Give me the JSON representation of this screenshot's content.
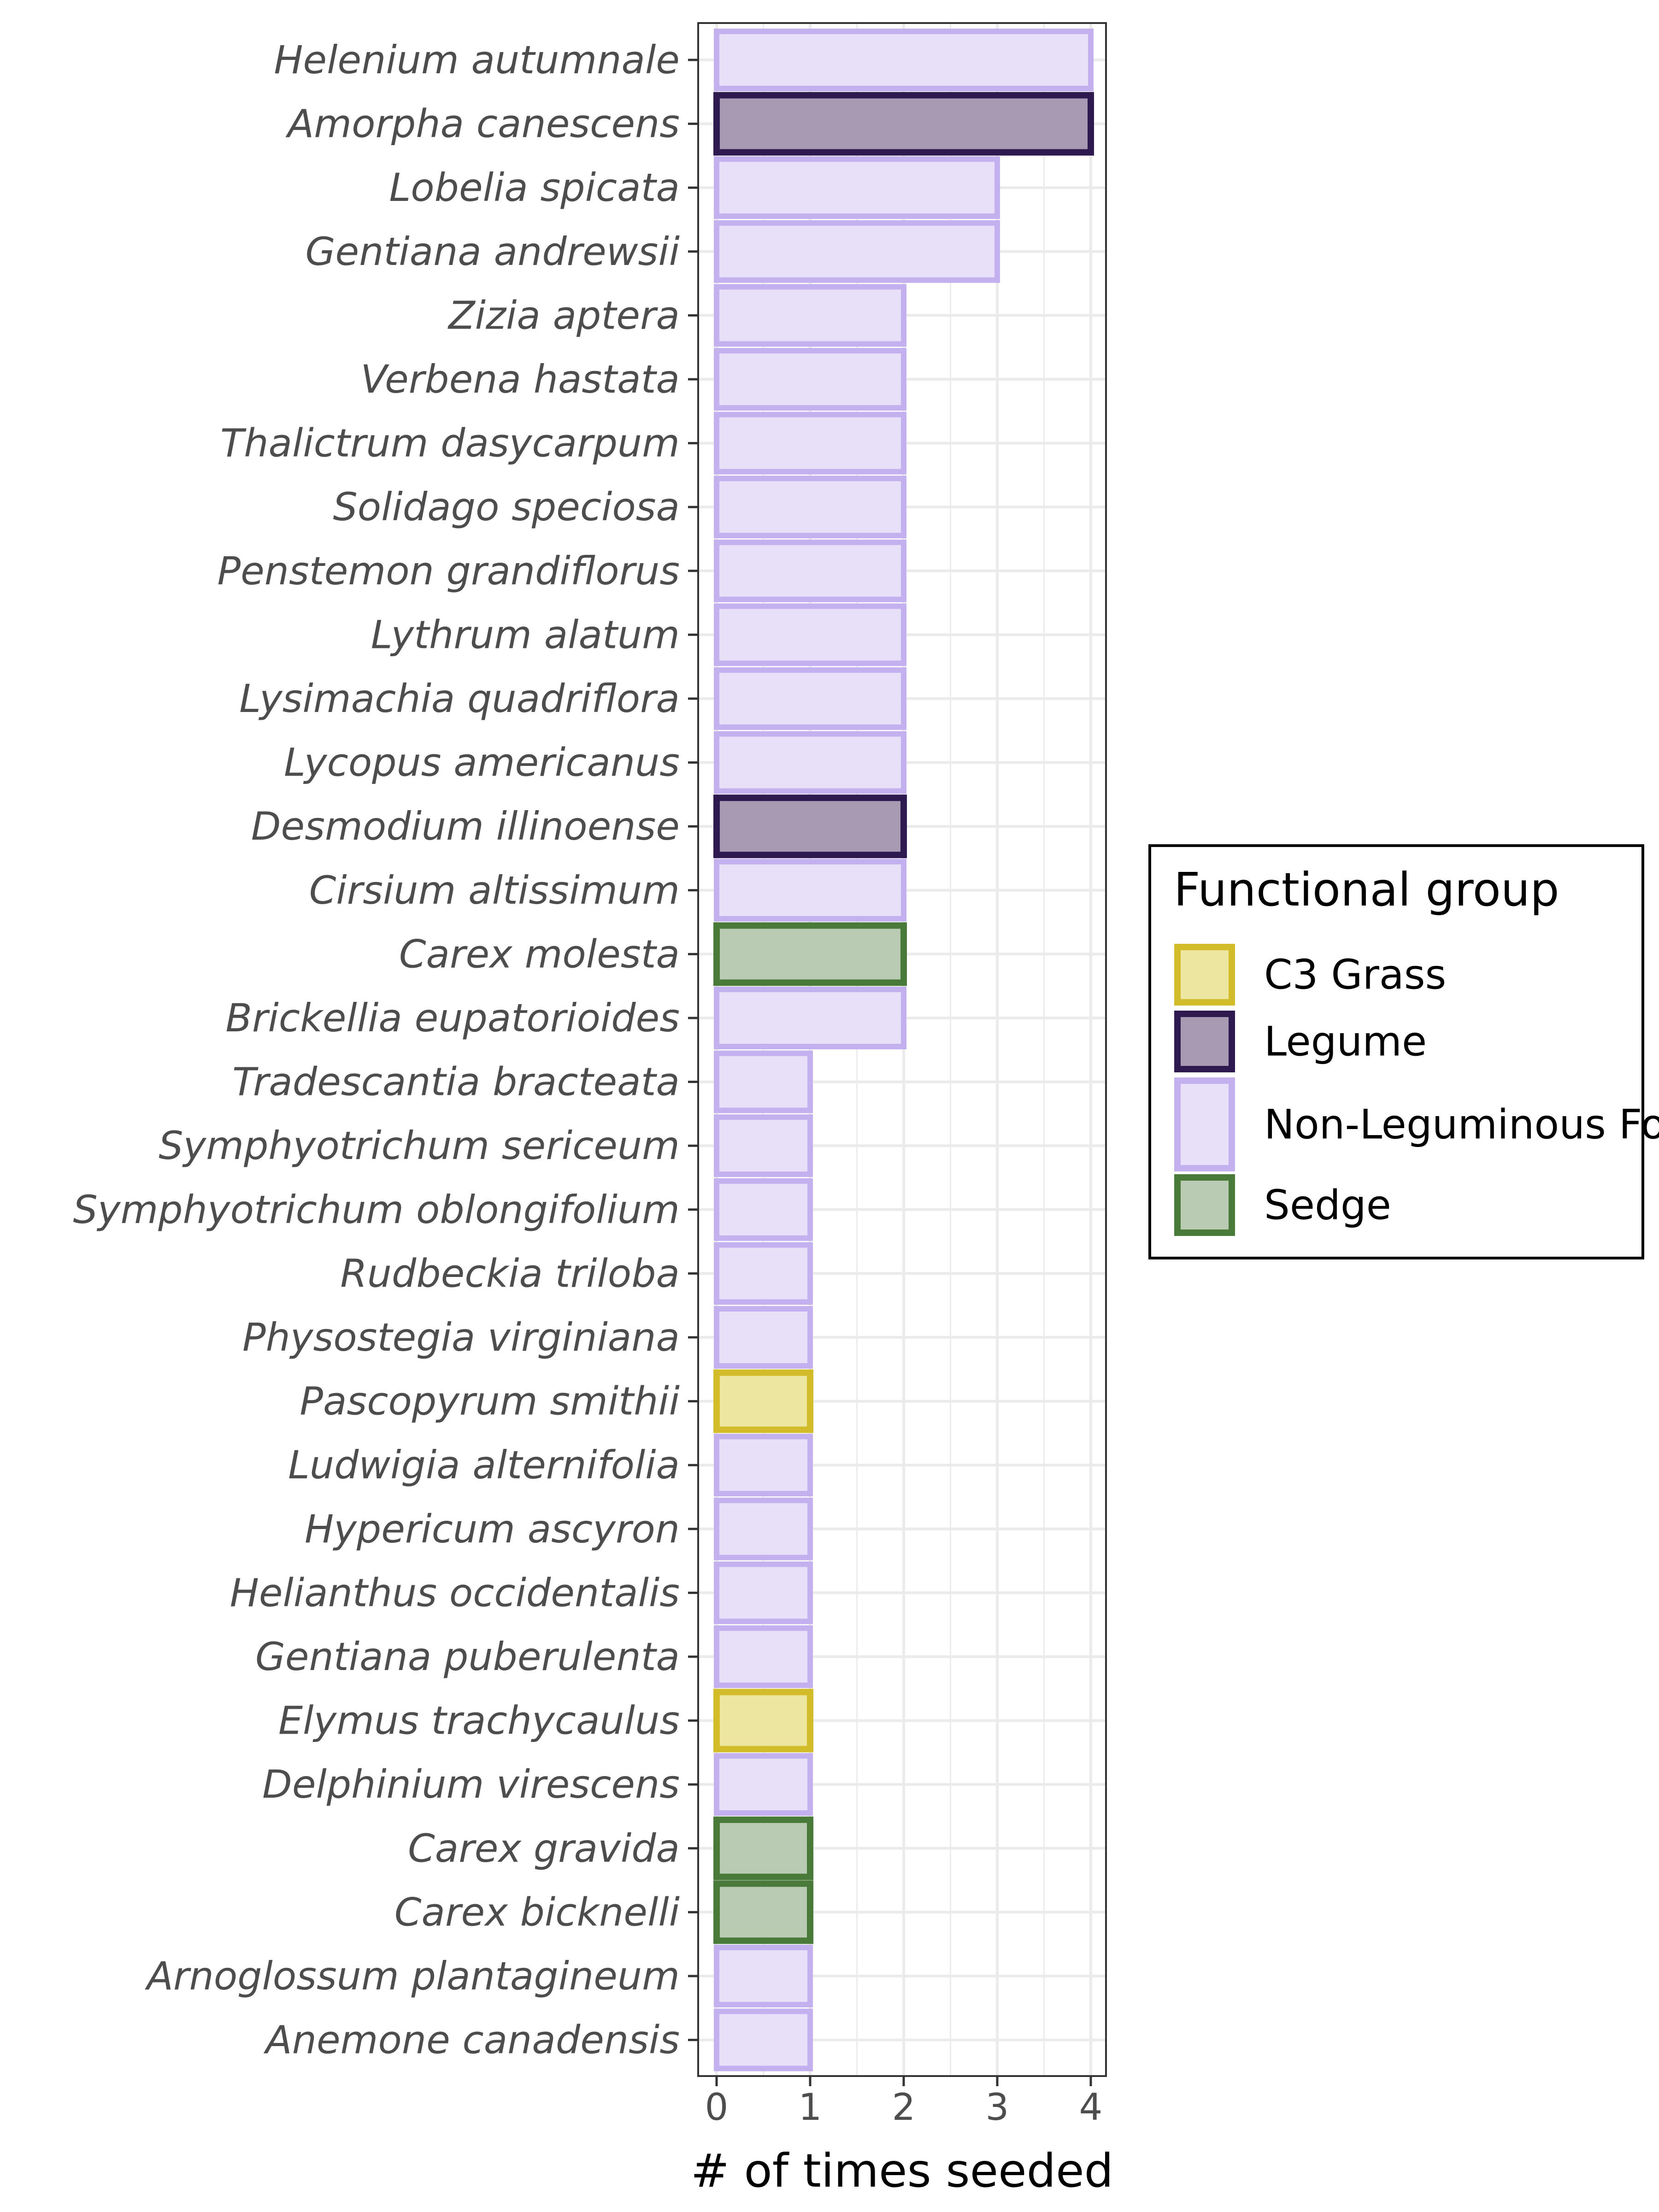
{
  "chart_data": {
    "type": "bar",
    "orientation": "horizontal",
    "xlabel": "# of times seeded",
    "ylabel": "",
    "xlim": [
      0,
      4
    ],
    "xticks": [
      0,
      1,
      2,
      3,
      4
    ],
    "grid": true,
    "legend": {
      "title": "Functional group",
      "placement": "right",
      "entries": [
        "C3 Grass",
        "Legume",
        "Non-Leguminous Forb",
        "Sedge"
      ]
    },
    "group_colors": {
      "C3 Grass": {
        "fill": "#ede6a0",
        "stroke": "#d2bc2a"
      },
      "Legume": {
        "fill": "#a99ab4",
        "stroke": "#2e1a4f"
      },
      "Non-Leguminous Forb": {
        "fill": "#e8e0f8",
        "stroke": "#c3b0ee"
      },
      "Sedge": {
        "fill": "#b9ccb3",
        "stroke": "#4a7a3a"
      }
    },
    "categories": [
      "Helenium autumnale",
      "Amorpha canescens",
      "Lobelia spicata",
      "Gentiana andrewsii",
      "Zizia aptera",
      "Verbena hastata",
      "Thalictrum dasycarpum",
      "Solidago speciosa",
      "Penstemon grandiflorus",
      "Lythrum alatum",
      "Lysimachia quadriflora",
      "Lycopus americanus",
      "Desmodium illinoense",
      "Cirsium altissimum",
      "Carex molesta",
      "Brickellia eupatorioides",
      "Tradescantia bracteata",
      "Symphyotrichum sericeum",
      "Symphyotrichum oblongifolium",
      "Rudbeckia triloba",
      "Physostegia virginiana",
      "Pascopyrum smithii",
      "Ludwigia alternifolia",
      "Hypericum ascyron",
      "Helianthus occidentalis",
      "Gentiana puberulenta",
      "Elymus trachycaulus",
      "Delphinium virescens",
      "Carex gravida",
      "Carex bicknelli",
      "Arnoglossum plantagineum",
      "Anemone canadensis"
    ],
    "values": [
      4,
      4,
      3,
      3,
      2,
      2,
      2,
      2,
      2,
      2,
      2,
      2,
      2,
      2,
      2,
      2,
      1,
      1,
      1,
      1,
      1,
      1,
      1,
      1,
      1,
      1,
      1,
      1,
      1,
      1,
      1,
      1
    ],
    "groups": [
      "Non-Leguminous Forb",
      "Legume",
      "Non-Leguminous Forb",
      "Non-Leguminous Forb",
      "Non-Leguminous Forb",
      "Non-Leguminous Forb",
      "Non-Leguminous Forb",
      "Non-Leguminous Forb",
      "Non-Leguminous Forb",
      "Non-Leguminous Forb",
      "Non-Leguminous Forb",
      "Non-Leguminous Forb",
      "Legume",
      "Non-Leguminous Forb",
      "Sedge",
      "Non-Leguminous Forb",
      "Non-Leguminous Forb",
      "Non-Leguminous Forb",
      "Non-Leguminous Forb",
      "Non-Leguminous Forb",
      "Non-Leguminous Forb",
      "C3 Grass",
      "Non-Leguminous Forb",
      "Non-Leguminous Forb",
      "Non-Leguminous Forb",
      "Non-Leguminous Forb",
      "C3 Grass",
      "Non-Leguminous Forb",
      "Sedge",
      "Sedge",
      "Non-Leguminous Forb",
      "Non-Leguminous Forb"
    ]
  }
}
